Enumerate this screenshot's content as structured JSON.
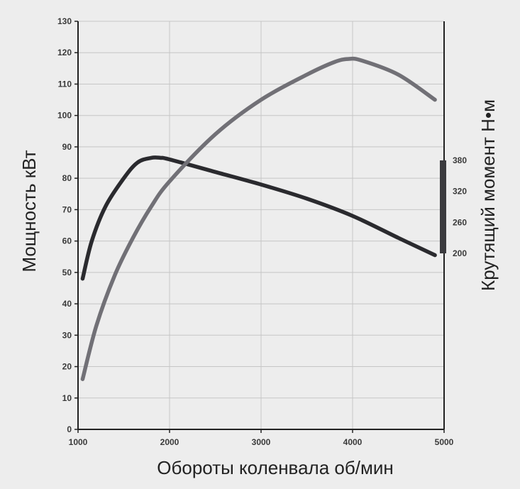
{
  "chart_data": {
    "type": "line",
    "title": "",
    "xlabel": "Обороты коленвала об/мин",
    "ylabel": "Мощность кВт",
    "y2label": "Крутящий момент Н•м",
    "xlim": [
      1000,
      5000
    ],
    "ylim": [
      0,
      130
    ],
    "x_ticks": [
      1000,
      2000,
      3000,
      4000,
      5000
    ],
    "y_ticks": [
      0,
      10,
      20,
      30,
      40,
      50,
      60,
      70,
      80,
      90,
      100,
      110,
      120,
      130
    ],
    "y2_ticks": [
      200,
      260,
      320,
      380
    ],
    "y2_bar_range": [
      200,
      380
    ],
    "grid": true,
    "series": [
      {
        "color": "#2a2a2e",
        "x": [
          1050,
          1150,
          1300,
          1500,
          1650,
          1800,
          1900,
          2000,
          2500,
          3000,
          3500,
          4000,
          4500,
          4900
        ],
        "values": [
          48,
          60,
          71,
          80,
          85,
          86.5,
          86.5,
          86,
          82,
          78,
          73.5,
          68,
          61,
          55.5
        ]
      },
      {
        "color": "#717076",
        "x": [
          1050,
          1200,
          1400,
          1600,
          1800,
          2000,
          2500,
          3000,
          3500,
          3800,
          3950,
          4100,
          4500,
          4900
        ],
        "values": [
          16,
          33,
          49,
          61,
          71,
          79,
          94,
          105,
          113,
          117,
          118,
          117.5,
          113,
          105
        ]
      }
    ],
    "colors": {
      "background": "#ededed",
      "grid": "#c6c6c6",
      "axis": "#222222"
    }
  }
}
